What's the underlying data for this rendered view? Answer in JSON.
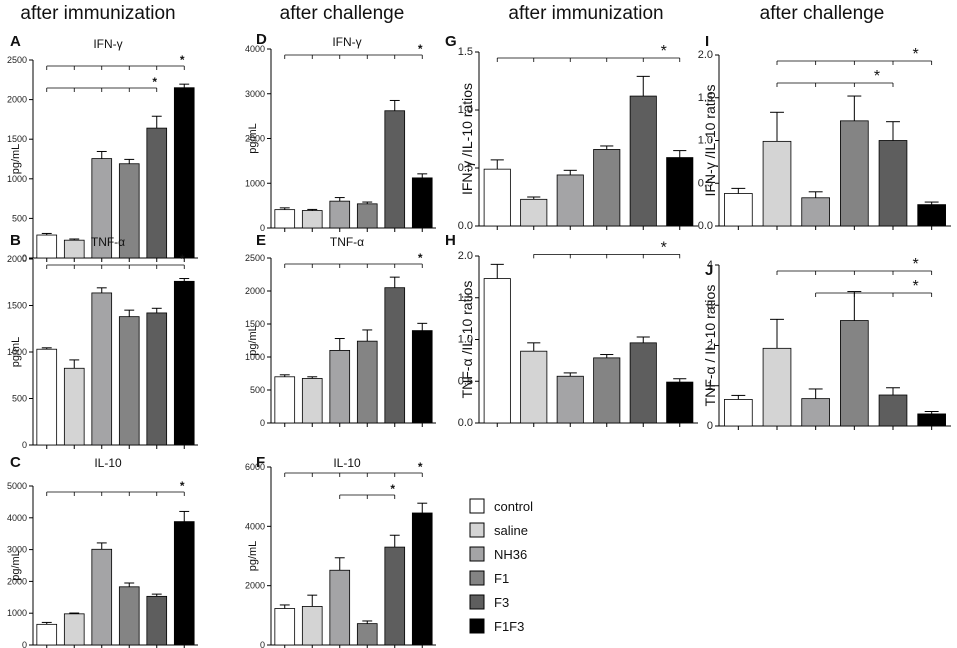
{
  "column_titles": [
    "after immunization",
    "after challenge",
    "after immunization",
    "after challenge"
  ],
  "legend": [
    {
      "label": "control",
      "color": "#ffffff"
    },
    {
      "label": "saline",
      "color": "#d4d4d4"
    },
    {
      "label": "NH36",
      "color": "#a4a4a6"
    },
    {
      "label": "F1",
      "color": "#848484"
    },
    {
      "label": "F3",
      "color": "#5e5e5e"
    },
    {
      "label": "F1F3",
      "color": "#000000"
    }
  ],
  "chart_data": [
    {
      "letter": "A",
      "type": "bar",
      "title": "IFN-γ",
      "ylabel": "pg/mL",
      "ylim": [
        0,
        2500
      ],
      "yticks": [
        "0",
        "500",
        "1000",
        "1500",
        "2000",
        "2500"
      ],
      "categories": [
        "control",
        "saline",
        "NH36",
        "F1",
        "F3",
        "F1F3"
      ],
      "values": [
        290,
        225,
        1255,
        1190,
        1640,
        2150
      ],
      "errors": [
        20,
        15,
        90,
        55,
        150,
        45
      ],
      "significance": [
        {
          "from": 0,
          "to": 5,
          "label": "*"
        },
        {
          "from": 0,
          "to": 4,
          "label": "*"
        }
      ]
    },
    {
      "letter": "B",
      "type": "bar",
      "title": "TNF-α",
      "ylabel": "pg/mL",
      "ylim": [
        0,
        2000
      ],
      "yticks": [
        "0",
        "500",
        "1000",
        "1500",
        "2000"
      ],
      "categories": [
        "control",
        "saline",
        "NH36",
        "F1",
        "F3",
        "F1F3"
      ],
      "values": [
        1030,
        825,
        1635,
        1380,
        1420,
        1760
      ],
      "errors": [
        15,
        90,
        55,
        70,
        50,
        30
      ],
      "significance": [
        {
          "from": 0,
          "to": 5,
          "label": "*"
        }
      ]
    },
    {
      "letter": "C",
      "type": "bar",
      "title": "IL-10",
      "ylabel": "pg/mL",
      "ylim": [
        0,
        5000
      ],
      "yticks": [
        "0",
        "1000",
        "2000",
        "3000",
        "4000",
        "5000"
      ],
      "categories": [
        "control",
        "saline",
        "NH36",
        "F1",
        "F3",
        "F1F3"
      ],
      "values": [
        650,
        980,
        3010,
        1830,
        1530,
        3880
      ],
      "errors": [
        60,
        25,
        200,
        120,
        70,
        320
      ],
      "significance": [
        {
          "from": 0,
          "to": 5,
          "label": "*"
        }
      ]
    },
    {
      "letter": "D",
      "type": "bar",
      "title": "IFN-γ",
      "ylabel": "pg/mL",
      "ylim": [
        0,
        4000
      ],
      "yticks": [
        "0",
        "1000",
        "2000",
        "3000",
        "4000"
      ],
      "categories": [
        "control",
        "saline",
        "NH36",
        "F1",
        "F3",
        "F1F3"
      ],
      "values": [
        410,
        390,
        600,
        540,
        2620,
        1120
      ],
      "errors": [
        40,
        25,
        80,
        40,
        230,
        90
      ],
      "significance": [
        {
          "from": 0,
          "to": 5,
          "label": "*"
        }
      ]
    },
    {
      "letter": "E",
      "type": "bar",
      "title": "TNF-α",
      "ylabel": "pg/mL",
      "ylim": [
        0,
        2500
      ],
      "yticks": [
        "0",
        "500",
        "1000",
        "1500",
        "2000",
        "2500"
      ],
      "categories": [
        "control",
        "saline",
        "NH36",
        "F1",
        "F3",
        "F1F3"
      ],
      "values": [
        700,
        675,
        1100,
        1240,
        2050,
        1400
      ],
      "errors": [
        30,
        25,
        180,
        170,
        160,
        110
      ],
      "significance": [
        {
          "from": 0,
          "to": 5,
          "label": "*"
        }
      ]
    },
    {
      "letter": "F",
      "type": "bar",
      "title": "IL-10",
      "ylabel": "pg/mL",
      "ylim": [
        0,
        6000
      ],
      "yticks": [
        "0",
        "2000",
        "4000",
        "6000"
      ],
      "categories": [
        "control",
        "saline",
        "NH36",
        "F1",
        "F3",
        "F1F3"
      ],
      "values": [
        1230,
        1300,
        2520,
        720,
        3300,
        4450
      ],
      "errors": [
        120,
        380,
        420,
        90,
        400,
        330
      ],
      "significance": [
        {
          "from": 0,
          "to": 5,
          "label": "*"
        },
        {
          "from": 2,
          "to": 4,
          "label": "*"
        }
      ]
    },
    {
      "letter": "G",
      "type": "bar",
      "title": "",
      "ylabel": "IFN-γ /IL-10 ratios",
      "ylim": [
        0,
        1.5
      ],
      "yticks": [
        "0.0",
        "0.5",
        "1.0",
        "1.5"
      ],
      "categories": [
        "control",
        "saline",
        "NH36",
        "F1",
        "F3",
        "F1F3"
      ],
      "values": [
        0.49,
        0.23,
        0.44,
        0.66,
        1.12,
        0.59
      ],
      "errors": [
        0.08,
        0.02,
        0.04,
        0.03,
        0.17,
        0.06
      ],
      "significance": [
        {
          "from": 0,
          "to": 5,
          "label": "*"
        }
      ]
    },
    {
      "letter": "H",
      "type": "bar",
      "title": "",
      "ylabel": "TNF-α /IL-10 ratios",
      "ylim": [
        0,
        2.0
      ],
      "yticks": [
        "0.0",
        "0.5",
        "1.0",
        "1.5",
        "2.0"
      ],
      "categories": [
        "control",
        "saline",
        "NH36",
        "F1",
        "F3",
        "F1F3"
      ],
      "values": [
        1.73,
        0.86,
        0.56,
        0.78,
        0.96,
        0.49
      ],
      "errors": [
        0.17,
        0.1,
        0.04,
        0.04,
        0.07,
        0.04
      ],
      "significance": [
        {
          "from": 1,
          "to": 5,
          "label": "*"
        }
      ]
    },
    {
      "letter": "I",
      "type": "bar",
      "title": "",
      "ylabel": "IFN-γ /IL-10 ratios",
      "ylim": [
        0,
        2.0
      ],
      "yticks": [
        "0.0",
        "0.5",
        "1.0",
        "1.5",
        "2.0"
      ],
      "categories": [
        "control",
        "saline",
        "NH36",
        "F1",
        "F3",
        "F1F3"
      ],
      "values": [
        0.38,
        0.99,
        0.33,
        1.23,
        1.0,
        0.25
      ],
      "errors": [
        0.06,
        0.34,
        0.07,
        0.29,
        0.22,
        0.03
      ],
      "significance": [
        {
          "from": 1,
          "to": 5,
          "label": "*"
        },
        {
          "from": 1,
          "to": 4,
          "label": "*"
        }
      ]
    },
    {
      "letter": "J",
      "type": "bar",
      "title": "",
      "ylabel": "TNF-α / IL-10 ratios",
      "ylim": [
        0,
        4
      ],
      "yticks": [
        "0",
        "1",
        "2",
        "3",
        "4"
      ],
      "categories": [
        "control",
        "saline",
        "NH36",
        "F1",
        "F3",
        "F1F3"
      ],
      "values": [
        0.66,
        1.93,
        0.68,
        2.62,
        0.77,
        0.3
      ],
      "errors": [
        0.1,
        0.72,
        0.24,
        0.72,
        0.18,
        0.06
      ],
      "significance": [
        {
          "from": 1,
          "to": 5,
          "label": "*"
        },
        {
          "from": 2,
          "to": 5,
          "label": "*"
        }
      ]
    }
  ]
}
